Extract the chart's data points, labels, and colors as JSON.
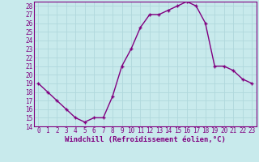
{
  "x": [
    0,
    1,
    2,
    3,
    4,
    5,
    6,
    7,
    8,
    9,
    10,
    11,
    12,
    13,
    14,
    15,
    16,
    17,
    18,
    19,
    20,
    21,
    22,
    23
  ],
  "y": [
    19,
    18,
    17,
    16,
    15,
    14.5,
    15,
    15,
    17.5,
    21,
    23,
    25.5,
    27,
    27,
    27.5,
    28,
    28.5,
    28,
    26,
    21,
    21,
    20.5,
    19.5,
    19
  ],
  "line_color": "#800080",
  "marker": "+",
  "marker_color": "#800080",
  "bg_color": "#c8eaec",
  "grid_color": "#b0d8dc",
  "xlabel": "Windchill (Refroidissement éolien,°C)",
  "xlabel_color": "#800080",
  "tick_color": "#800080",
  "ylim": [
    14,
    28.5
  ],
  "xlim": [
    -0.5,
    23.5
  ],
  "yticks": [
    14,
    15,
    16,
    17,
    18,
    19,
    20,
    21,
    22,
    23,
    24,
    25,
    26,
    27,
    28
  ],
  "xticks": [
    0,
    1,
    2,
    3,
    4,
    5,
    6,
    7,
    8,
    9,
    10,
    11,
    12,
    13,
    14,
    15,
    16,
    17,
    18,
    19,
    20,
    21,
    22,
    23
  ],
  "spine_color": "#800080",
  "linewidth": 1.0,
  "markersize": 3.5,
  "tick_fontsize": 5.5,
  "xlabel_fontsize": 6.5
}
